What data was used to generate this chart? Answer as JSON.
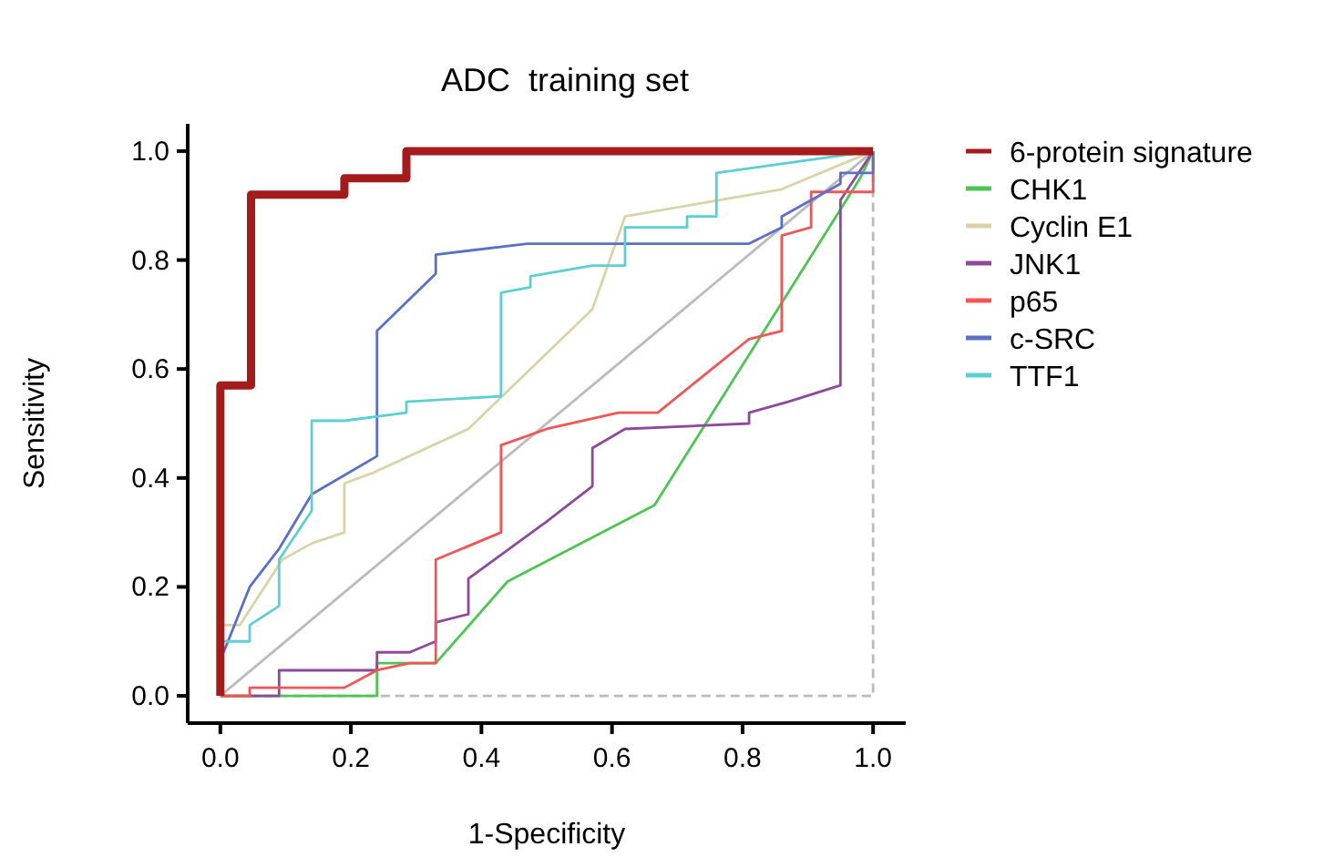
{
  "chart_data": {
    "type": "line",
    "title": "ADC  training set",
    "xlabel": "1-Specificity",
    "ylabel": "Sensitivity",
    "xlim": [
      -0.05,
      1.05
    ],
    "ylim": [
      -0.05,
      1.05
    ],
    "xticks": [
      {
        "value": 0,
        "label": "0.0"
      },
      {
        "value": 0.2,
        "label": "0.2"
      },
      {
        "value": 0.4,
        "label": "0.4"
      },
      {
        "value": 0.6,
        "label": "0.6"
      },
      {
        "value": 0.8,
        "label": "0.8"
      },
      {
        "value": 1,
        "label": "1.0"
      }
    ],
    "yticks": [
      {
        "value": 0,
        "label": "0.0"
      },
      {
        "value": 0.2,
        "label": "0.2"
      },
      {
        "value": 0.4,
        "label": "0.4"
      },
      {
        "value": 0.6,
        "label": "0.6"
      },
      {
        "value": 0.8,
        "label": "0.8"
      },
      {
        "value": 1,
        "label": "1.0"
      }
    ],
    "grid": false,
    "legend": "right",
    "marker": "none",
    "series": [
      {
        "color": "#bbbbbb",
        "x": [
          0,
          1
        ],
        "values": [
          0,
          1
        ]
      },
      {
        "color": "#bbbbbb",
        "line_style": "dashed",
        "x": [
          0,
          1,
          1
        ],
        "values": [
          0,
          0,
          1
        ]
      },
      {
        "name": "CHK1",
        "color": "#4cc552",
        "x": [
          0,
          0.24,
          0.24,
          0.33,
          0.44,
          0.665,
          0.98,
          1
        ],
        "values": [
          0,
          0,
          0.06,
          0.06,
          0.21,
          0.35,
          0.95,
          1
        ]
      },
      {
        "name": "Cyclin E1",
        "color": "#d9d3a8",
        "x": [
          0,
          0.03,
          0.095,
          0.14,
          0.19,
          0.19,
          0.235,
          0.38,
          0.57,
          0.62,
          0.86,
          1
        ],
        "values": [
          0.13,
          0.13,
          0.25,
          0.28,
          0.3,
          0.39,
          0.41,
          0.49,
          0.71,
          0.88,
          0.93,
          1
        ]
      },
      {
        "name": "JNK1",
        "color": "#8e4a9a",
        "x": [
          0,
          0.09,
          0.09,
          0.24,
          0.24,
          0.29,
          0.33,
          0.33,
          0.38,
          0.38,
          0.5,
          0.57,
          0.57,
          0.62,
          0.81,
          0.81,
          0.87,
          0.95,
          0.95,
          1
        ],
        "values": [
          0,
          0,
          0.047,
          0.047,
          0.08,
          0.08,
          0.1,
          0.135,
          0.15,
          0.215,
          0.32,
          0.385,
          0.455,
          0.49,
          0.5,
          0.52,
          0.54,
          0.57,
          0.91,
          1
        ]
      },
      {
        "name": "p65",
        "color": "#f25555",
        "x": [
          0,
          0.045,
          0.045,
          0.19,
          0.24,
          0.29,
          0.33,
          0.33,
          0.43,
          0.43,
          0.5,
          0.61,
          0.67,
          0.81,
          0.86,
          0.86,
          0.905,
          0.905,
          1,
          1
        ],
        "values": [
          0,
          0,
          0.015,
          0.015,
          0.047,
          0.06,
          0.06,
          0.25,
          0.3,
          0.46,
          0.49,
          0.52,
          0.52,
          0.655,
          0.67,
          0.845,
          0.86,
          0.925,
          0.925,
          1
        ]
      },
      {
        "name": "c-SRC",
        "color": "#5b70c4",
        "x": [
          0.005,
          0.045,
          0.09,
          0.14,
          0.24,
          0.24,
          0.33,
          0.33,
          0.47,
          0.81,
          0.86,
          0.86,
          0.905,
          0.95,
          0.95,
          1,
          1
        ],
        "values": [
          0.08,
          0.2,
          0.27,
          0.37,
          0.44,
          0.67,
          0.775,
          0.81,
          0.83,
          0.83,
          0.86,
          0.88,
          0.91,
          0.94,
          0.96,
          0.96,
          1
        ]
      },
      {
        "name": "TTF1",
        "color": "#5ccfd3",
        "x": [
          0,
          0.045,
          0.045,
          0.09,
          0.09,
          0.14,
          0.14,
          0.19,
          0.285,
          0.285,
          0.43,
          0.43,
          0.475,
          0.475,
          0.57,
          0.62,
          0.62,
          0.715,
          0.715,
          0.76,
          0.76,
          1
        ],
        "values": [
          0.1,
          0.1,
          0.13,
          0.165,
          0.25,
          0.34,
          0.505,
          0.505,
          0.52,
          0.54,
          0.55,
          0.74,
          0.75,
          0.77,
          0.79,
          0.79,
          0.86,
          0.86,
          0.88,
          0.88,
          0.96,
          1
        ]
      },
      {
        "name": "6-protein signature",
        "color": "#a31b1b",
        "x": [
          0,
          0,
          0.047,
          0.047,
          0.19,
          0.19,
          0.285,
          0.285,
          1
        ],
        "values": [
          0,
          0.57,
          0.57,
          0.92,
          0.92,
          0.95,
          0.95,
          1,
          1
        ]
      }
    ]
  }
}
